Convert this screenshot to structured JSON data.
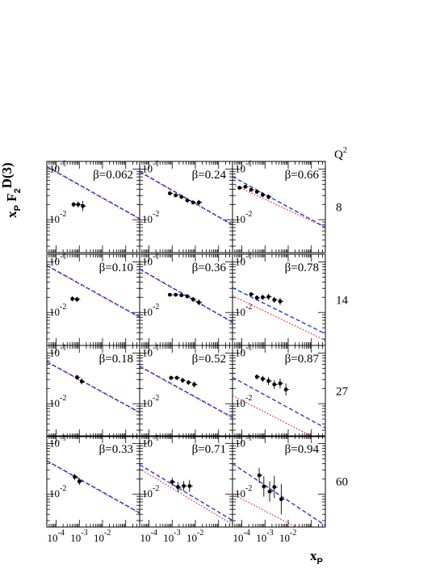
{
  "chart_data": {
    "type": "scatter",
    "xlabel": {
      "main": "x",
      "sub": "P"
    },
    "ylabel": {
      "x": "x",
      "xsub": "P",
      "F": "F",
      "Fsub": "2",
      "Fsup": "D(3)"
    },
    "q2_header": {
      "main": "Q",
      "sup": "2"
    },
    "x_log_range": [
      -4.4,
      -0.4
    ],
    "y_log_range": [
      -2.65,
      -0.85
    ],
    "x_ticks": [
      {
        "base": "10",
        "exp": "-4",
        "logv": -4
      },
      {
        "base": "10",
        "exp": "-3",
        "logv": -3
      },
      {
        "base": "10",
        "exp": "-2",
        "logv": -2
      }
    ],
    "y_ticks": [
      {
        "base": "10",
        "exp": "-1",
        "logv": -1
      },
      {
        "base": "10",
        "exp": "-2",
        "logv": -2
      }
    ],
    "rows": [
      {
        "q2": "8",
        "panels": [
          {
            "beta": "β=0.062",
            "blue": [
              [
                -4.4,
                -0.95
              ],
              [
                -0.4,
                -1.98
              ]
            ],
            "red": [
              [
                -4.4,
                -0.96
              ],
              [
                -0.4,
                -1.99
              ]
            ],
            "points": [
              [
                -3.25,
                -1.7,
                0.05
              ],
              [
                -3.05,
                -1.7,
                0.06
              ],
              [
                -2.85,
                -1.73,
                0.1
              ]
            ]
          },
          {
            "beta": "β=0.24",
            "blue": [
              [
                -4.4,
                -1.05
              ],
              [
                -0.4,
                -2.1
              ]
            ],
            "red": [
              [
                -4.4,
                -1.06
              ],
              [
                -0.4,
                -2.11
              ]
            ],
            "points": [
              [
                -3.1,
                -1.48,
                0.03
              ],
              [
                -2.85,
                -1.52,
                0.03
              ],
              [
                -2.6,
                -1.55,
                0.03
              ],
              [
                -2.35,
                -1.62,
                0.04
              ],
              [
                -2.1,
                -1.66,
                0.04
              ],
              [
                -1.85,
                -1.66,
                0.05
              ]
            ]
          },
          {
            "beta": "β=0.66",
            "blue": [
              [
                -4.4,
                -1.15
              ],
              [
                -0.4,
                -2.15
              ]
            ],
            "red": [
              [
                -4.4,
                -1.3
              ],
              [
                -0.4,
                -2.15
              ]
            ],
            "points": [
              [
                -4.1,
                -1.37,
                0.03
              ],
              [
                -3.85,
                -1.35,
                0.03
              ],
              [
                -3.6,
                -1.41,
                0.03
              ],
              [
                -3.35,
                -1.45,
                0.03
              ],
              [
                -3.1,
                -1.51,
                0.04
              ],
              [
                -2.85,
                -1.55,
                0.05
              ]
            ]
          }
        ]
      },
      {
        "q2": "14",
        "panels": [
          {
            "beta": "β=0.10",
            "blue": [
              [
                -4.4,
                -1.07
              ],
              [
                -0.4,
                -2.09
              ]
            ],
            "red": [
              [
                -4.4,
                -1.08
              ],
              [
                -0.4,
                -2.1
              ]
            ],
            "points": [
              [
                -3.3,
                -1.73,
                0.05
              ],
              [
                -3.1,
                -1.74,
                0.05
              ]
            ]
          },
          {
            "beta": "β=0.36",
            "blue": [
              [
                -4.4,
                -1.14
              ],
              [
                -0.4,
                -2.19
              ]
            ],
            "red": [
              [
                -4.4,
                -1.15
              ],
              [
                -0.4,
                -2.2
              ]
            ],
            "points": [
              [
                -3.1,
                -1.65,
                0.03
              ],
              [
                -2.85,
                -1.65,
                0.03
              ],
              [
                -2.6,
                -1.66,
                0.03
              ],
              [
                -2.35,
                -1.68,
                0.04
              ],
              [
                -2.1,
                -1.74,
                0.05
              ],
              [
                -1.85,
                -1.8,
                0.06
              ]
            ]
          },
          {
            "beta": "β=0.78",
            "blue": [
              [
                -4.4,
                -1.51
              ],
              [
                -0.4,
                -2.42
              ]
            ],
            "red": [
              [
                -4.4,
                -1.67
              ],
              [
                -0.4,
                -2.55
              ]
            ],
            "points": [
              [
                -3.6,
                -1.64,
                0.04
              ],
              [
                -3.35,
                -1.71,
                0.05
              ],
              [
                -3.1,
                -1.7,
                0.05
              ],
              [
                -2.85,
                -1.69,
                0.06
              ],
              [
                -2.6,
                -1.75,
                0.06
              ],
              [
                -2.35,
                -1.78,
                0.07
              ]
            ]
          }
        ]
      },
      {
        "q2": "27",
        "panels": [
          {
            "beta": "β=0.18",
            "blue": [
              [
                -4.4,
                -1.17
              ],
              [
                -0.4,
                -2.17
              ]
            ],
            "red": [
              [
                -4.4,
                -1.18
              ],
              [
                -0.4,
                -2.18
              ]
            ],
            "points": [
              [
                -3.1,
                -1.48,
                0.05
              ],
              [
                -2.9,
                -1.56,
                0.06
              ]
            ]
          },
          {
            "beta": "β=0.52",
            "blue": [
              [
                -4.4,
                -1.26
              ],
              [
                -0.4,
                -2.27
              ]
            ],
            "red": [
              [
                -4.4,
                -1.27
              ],
              [
                -0.4,
                -2.28
              ]
            ],
            "points": [
              [
                -3.05,
                -1.49,
                0.04
              ],
              [
                -2.8,
                -1.49,
                0.04
              ],
              [
                -2.55,
                -1.54,
                0.05
              ],
              [
                -2.3,
                -1.58,
                0.05
              ],
              [
                -2.05,
                -1.62,
                0.06
              ]
            ]
          },
          {
            "beta": "β=0.87",
            "blue": [
              [
                -4.4,
                -1.48
              ],
              [
                -0.4,
                -2.48
              ]
            ],
            "red": [
              [
                -4.4,
                -1.84
              ],
              [
                -0.4,
                -2.78
              ]
            ],
            "points": [
              [
                -3.35,
                -1.47,
                0.05
              ],
              [
                -3.1,
                -1.51,
                0.06
              ],
              [
                -2.85,
                -1.55,
                0.08
              ],
              [
                -2.6,
                -1.62,
                0.09
              ],
              [
                -2.35,
                -1.6,
                0.1
              ],
              [
                -2.1,
                -1.72,
                0.12
              ]
            ]
          }
        ]
      },
      {
        "q2": "60",
        "panels": [
          {
            "beta": "β=0.33",
            "blue": [
              [
                -4.4,
                -1.34
              ],
              [
                -0.4,
                -2.37
              ]
            ],
            "red": [
              [
                -4.4,
                -1.35
              ],
              [
                -0.4,
                -2.38
              ]
            ],
            "points": [
              [
                -3.2,
                -1.66,
                0.06
              ],
              [
                -3.0,
                -1.75,
                0.07
              ]
            ]
          },
          {
            "beta": "β=0.71",
            "blue": [
              [
                -4.4,
                -1.42
              ],
              [
                -0.4,
                -2.52
              ]
            ],
            "red": [
              [
                -4.4,
                -1.5
              ],
              [
                -0.4,
                -2.6
              ]
            ],
            "points": [
              [
                -3.0,
                -1.76,
                0.08
              ],
              [
                -2.75,
                -1.86,
                0.1
              ],
              [
                -2.5,
                -1.84,
                0.1
              ],
              [
                -2.25,
                -1.84,
                0.12
              ]
            ]
          },
          {
            "beta": "β=0.94",
            "blue": [
              [
                -4.4,
                -1.4
              ],
              [
                -0.4,
                -2.62
              ]
            ],
            "red": [
              [
                -4.4,
                -2.0
              ],
              [
                -0.4,
                -2.95
              ]
            ],
            "points": [
              [
                -3.25,
                -1.63,
                0.15
              ],
              [
                -3.05,
                -1.85,
                0.2
              ],
              [
                -2.8,
                -1.95,
                0.2
              ],
              [
                -2.6,
                -1.86,
                0.22
              ],
              [
                -2.3,
                -2.1,
                0.3
              ]
            ]
          }
        ]
      }
    ]
  }
}
